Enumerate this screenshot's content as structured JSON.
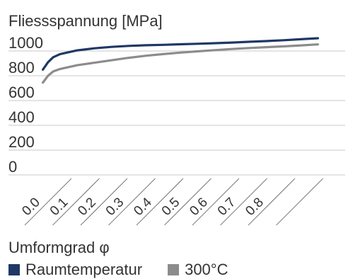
{
  "chart_data": {
    "type": "line",
    "title": "Fliessspannung [MPa]",
    "xlabel": "Umformgrad φ",
    "ylabel": "Fliessspannung [MPa]",
    "x_ticks": [
      "0.0",
      "0.1",
      "0.2",
      "0.3",
      "0.4",
      "0.5",
      "0.6",
      "0.7",
      "0.8"
    ],
    "y_ticks": [
      "0",
      "200",
      "400",
      "600",
      "800",
      "1000"
    ],
    "xlim": [
      0,
      0.92
    ],
    "ylim": [
      0,
      1000
    ],
    "grid": "horizontal",
    "legend": "bottom-left",
    "series": [
      {
        "name": "Raumtemperatur",
        "color": "#1f3864",
        "points": [
          [
            0.1,
            850
          ],
          [
            0.115,
            910
          ],
          [
            0.13,
            950
          ],
          [
            0.15,
            975
          ],
          [
            0.2,
            1005
          ],
          [
            0.25,
            1022
          ],
          [
            0.3,
            1033
          ],
          [
            0.35,
            1041
          ],
          [
            0.4,
            1046
          ],
          [
            0.45,
            1050
          ],
          [
            0.5,
            1054
          ],
          [
            0.55,
            1058
          ],
          [
            0.6,
            1063
          ],
          [
            0.65,
            1068
          ],
          [
            0.7,
            1074
          ],
          [
            0.75,
            1080
          ],
          [
            0.8,
            1087
          ],
          [
            0.85,
            1095
          ],
          [
            0.9,
            1103
          ]
        ]
      },
      {
        "name": "300°C",
        "color": "#8c8c8c",
        "points": [
          [
            0.1,
            745
          ],
          [
            0.115,
            800
          ],
          [
            0.13,
            835
          ],
          [
            0.15,
            855
          ],
          [
            0.2,
            885
          ],
          [
            0.25,
            905
          ],
          [
            0.3,
            925
          ],
          [
            0.35,
            945
          ],
          [
            0.4,
            962
          ],
          [
            0.45,
            975
          ],
          [
            0.5,
            987
          ],
          [
            0.55,
            997
          ],
          [
            0.6,
            1007
          ],
          [
            0.65,
            1016
          ],
          [
            0.7,
            1024
          ],
          [
            0.75,
            1031
          ],
          [
            0.8,
            1037
          ],
          [
            0.85,
            1045
          ],
          [
            0.9,
            1053
          ]
        ]
      }
    ]
  }
}
